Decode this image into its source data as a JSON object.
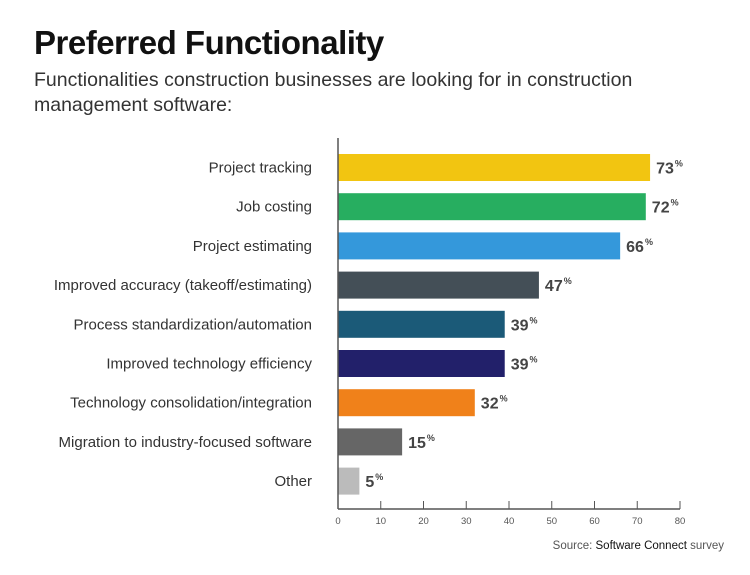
{
  "chart_data": {
    "type": "bar",
    "orientation": "horizontal",
    "title": "Preferred Functionality",
    "subtitle": "Functionalities construction businesses are looking for in construction management software:",
    "categories": [
      "Project tracking",
      "Job costing",
      "Project estimating",
      "Improved accuracy (takeoff/estimating)",
      "Process standardization/automation",
      "Improved technology efficiency",
      "Technology consolidation/integration",
      "Migration to industry-focused software",
      "Other"
    ],
    "values": [
      73,
      72,
      66,
      47,
      39,
      39,
      32,
      15,
      5
    ],
    "value_suffix": "%",
    "colors": [
      "#f2c511",
      "#27ae60",
      "#3498db",
      "#444f57",
      "#1b5a78",
      "#22206a",
      "#f0811a",
      "#666666",
      "#bbbbbb"
    ],
    "xlim": [
      0,
      80
    ],
    "xticks": [
      0,
      10,
      20,
      30,
      40,
      50,
      60,
      70,
      80
    ],
    "grid": false,
    "source_prefix": "Source: ",
    "source_name": "Software Connect",
    "source_suffix": " survey"
  }
}
